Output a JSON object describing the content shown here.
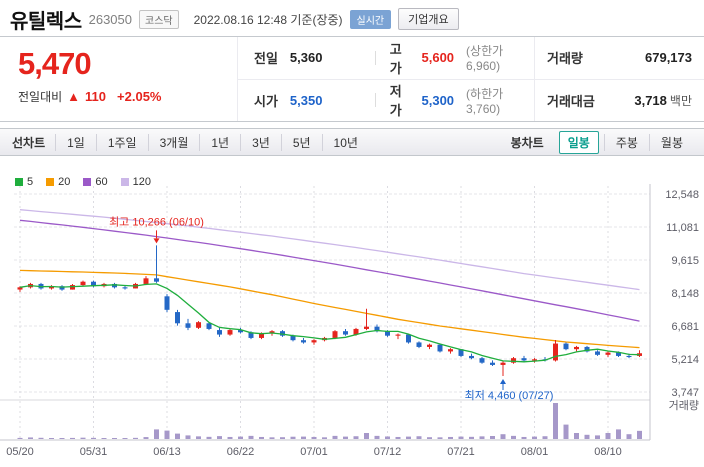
{
  "header": {
    "title": "유틸렉스",
    "code": "263050",
    "market_badge": "코스닥",
    "datetime": "2022.08.16 12:48 기준(장중)",
    "realtime_label": "실시간",
    "overview_label": "기업개요"
  },
  "quote": {
    "price": "5,470",
    "change_label": "전일대비",
    "change_arrow": "▲",
    "change_value": "110",
    "change_percent": "+2.05%",
    "prev_label": "전일",
    "prev_value": "5,360",
    "high_label": "고가",
    "high_value": "5,600",
    "high_limit": "(상한가 6,960)",
    "open_label": "시가",
    "open_value": "5,350",
    "low_label": "저가",
    "low_value": "5,300",
    "low_limit": "(하한가 3,760)",
    "volume_label": "거래량",
    "volume_value": "679,173",
    "amount_label": "거래대금",
    "amount_value": "3,718",
    "amount_unit": "백만"
  },
  "period_tabs": {
    "left_label": "선차트",
    "items": [
      {
        "label": "1일",
        "key": "1d"
      },
      {
        "label": "1주일",
        "key": "1w"
      },
      {
        "label": "3개월",
        "key": "3m"
      },
      {
        "label": "1년",
        "key": "1y"
      },
      {
        "label": "3년",
        "key": "3y"
      },
      {
        "label": "5년",
        "key": "5y"
      },
      {
        "label": "10년",
        "key": "10y"
      }
    ],
    "right_label": "봉차트",
    "candle_tabs": [
      {
        "label": "일봉",
        "key": "daily",
        "active": true
      },
      {
        "label": "주봉",
        "key": "weekly",
        "active": false
      },
      {
        "label": "월봉",
        "key": "monthly",
        "active": false
      }
    ]
  },
  "chart_data": {
    "type": "candlestick",
    "title": "유틸렉스 일봉 차트",
    "legend": [
      {
        "label": "5",
        "color": "#1fae3d"
      },
      {
        "label": "20",
        "color": "#f59b00"
      },
      {
        "label": "60",
        "color": "#9b59c8"
      },
      {
        "label": "120",
        "color": "#cbb7e8"
      }
    ],
    "up_color": "#e5241d",
    "down_color": "#2468c6",
    "volume_color": "#a698c9",
    "y_ticks": [
      12548,
      11081,
      9615,
      8148,
      6681,
      5214,
      3747
    ],
    "x_tick_labels": [
      "05/20",
      "05/31",
      "06/13",
      "06/22",
      "07/01",
      "07/12",
      "07/21",
      "08/01",
      "08/10"
    ],
    "x_tick_indices": [
      0,
      7,
      14,
      21,
      28,
      35,
      42,
      49,
      56
    ],
    "volume_pane_label": "거래량",
    "annotations": {
      "high": {
        "text": "최고 10,266 (06/10)",
        "index": 13,
        "value": 10266,
        "color": "#e5241d"
      },
      "low": {
        "text": "최저 4,460 (07/27)",
        "index": 46,
        "value": 4460,
        "color": "#1e63c9"
      }
    },
    "candles": [
      [
        8300,
        8450,
        8200,
        8400,
        90
      ],
      [
        8400,
        8600,
        8350,
        8550,
        130
      ],
      [
        8550,
        8600,
        8300,
        8350,
        100
      ],
      [
        8350,
        8500,
        8300,
        8450,
        80
      ],
      [
        8450,
        8500,
        8250,
        8300,
        70
      ],
      [
        8300,
        8550,
        8300,
        8500,
        90
      ],
      [
        8500,
        8700,
        8450,
        8650,
        110
      ],
      [
        8650,
        8700,
        8400,
        8450,
        95
      ],
      [
        8450,
        8600,
        8400,
        8550,
        75
      ],
      [
        8550,
        8600,
        8350,
        8400,
        65
      ],
      [
        8400,
        8500,
        8300,
        8350,
        55
      ],
      [
        8350,
        8600,
        8350,
        8550,
        95
      ],
      [
        8550,
        8900,
        8500,
        8800,
        160
      ],
      [
        8800,
        10266,
        8600,
        8650,
        800
      ],
      [
        8000,
        8100,
        7300,
        7400,
        700
      ],
      [
        7300,
        7400,
        6700,
        6800,
        450
      ],
      [
        6800,
        7000,
        6500,
        6600,
        300
      ],
      [
        6600,
        6900,
        6550,
        6850,
        220
      ],
      [
        6800,
        6850,
        6500,
        6550,
        180
      ],
      [
        6500,
        6600,
        6200,
        6300,
        240
      ],
      [
        6300,
        6550,
        6250,
        6500,
        170
      ],
      [
        6500,
        6600,
        6350,
        6400,
        200
      ],
      [
        6400,
        6450,
        6100,
        6150,
        260
      ],
      [
        6150,
        6400,
        6100,
        6350,
        170
      ],
      [
        6350,
        6500,
        6250,
        6450,
        140
      ],
      [
        6450,
        6500,
        6200,
        6250,
        150
      ],
      [
        6250,
        6300,
        6000,
        6050,
        190
      ],
      [
        6050,
        6150,
        5900,
        5950,
        200
      ],
      [
        5950,
        6100,
        5850,
        6050,
        170
      ],
      [
        6050,
        6200,
        6000,
        6150,
        140
      ],
      [
        6150,
        6500,
        6100,
        6450,
        260
      ],
      [
        6450,
        6550,
        6250,
        6300,
        200
      ],
      [
        6300,
        6600,
        6250,
        6550,
        230
      ],
      [
        6550,
        7450,
        6500,
        6650,
        500
      ],
      [
        6650,
        6750,
        6400,
        6450,
        260
      ],
      [
        6450,
        6500,
        6200,
        6250,
        210
      ],
      [
        6250,
        6350,
        6100,
        6300,
        170
      ],
      [
        6300,
        6300,
        5900,
        5950,
        200
      ],
      [
        5950,
        6000,
        5700,
        5750,
        230
      ],
      [
        5750,
        5900,
        5650,
        5850,
        150
      ],
      [
        5850,
        5850,
        5500,
        5550,
        140
      ],
      [
        5550,
        5700,
        5450,
        5650,
        170
      ],
      [
        5650,
        5650,
        5300,
        5350,
        200
      ],
      [
        5350,
        5450,
        5200,
        5250,
        180
      ],
      [
        5250,
        5300,
        5000,
        5050,
        220
      ],
      [
        5050,
        5150,
        4900,
        4950,
        250
      ],
      [
        4950,
        5100,
        4460,
        5050,
        400
      ],
      [
        5050,
        5300,
        5000,
        5250,
        260
      ],
      [
        5250,
        5350,
        5100,
        5150,
        170
      ],
      [
        5150,
        5250,
        5050,
        5200,
        200
      ],
      [
        5200,
        5300,
        5100,
        5150,
        230
      ],
      [
        5150,
        6060,
        5100,
        5900,
        3000
      ],
      [
        5900,
        5950,
        5600,
        5650,
        1200
      ],
      [
        5650,
        5800,
        5550,
        5750,
        500
      ],
      [
        5750,
        5800,
        5500,
        5550,
        350
      ],
      [
        5550,
        5600,
        5350,
        5400,
        300
      ],
      [
        5400,
        5550,
        5300,
        5500,
        500
      ],
      [
        5500,
        5550,
        5300,
        5350,
        800
      ],
      [
        5350,
        5450,
        5250,
        5300,
        400
      ],
      [
        5350,
        5600,
        5300,
        5470,
        679
      ]
    ],
    "ma_lines": {
      "ma20": {
        "legend": "20",
        "anchors": [
          [
            0,
            9150
          ],
          [
            6,
            9080
          ],
          [
            10,
            9020
          ],
          [
            13,
            8950
          ],
          [
            16,
            8720
          ],
          [
            20,
            8420
          ],
          [
            24,
            8070
          ],
          [
            28,
            7680
          ],
          [
            32,
            7330
          ],
          [
            36,
            6980
          ],
          [
            40,
            6680
          ],
          [
            44,
            6430
          ],
          [
            48,
            6180
          ],
          [
            52,
            5970
          ],
          [
            56,
            5820
          ],
          [
            59,
            5720
          ]
        ]
      },
      "ma60": {
        "legend": "60",
        "anchors": [
          [
            0,
            11380
          ],
          [
            6,
            11070
          ],
          [
            12,
            10720
          ],
          [
            18,
            10330
          ],
          [
            24,
            9900
          ],
          [
            30,
            9430
          ],
          [
            36,
            8930
          ],
          [
            42,
            8420
          ],
          [
            48,
            7890
          ],
          [
            54,
            7360
          ],
          [
            59,
            6900
          ]
        ]
      },
      "ma120": {
        "legend": "120",
        "anchors": [
          [
            0,
            11850
          ],
          [
            8,
            11520
          ],
          [
            16,
            11130
          ],
          [
            24,
            10680
          ],
          [
            32,
            10170
          ],
          [
            40,
            9610
          ],
          [
            48,
            9010
          ],
          [
            59,
            8300
          ]
        ]
      }
    }
  }
}
